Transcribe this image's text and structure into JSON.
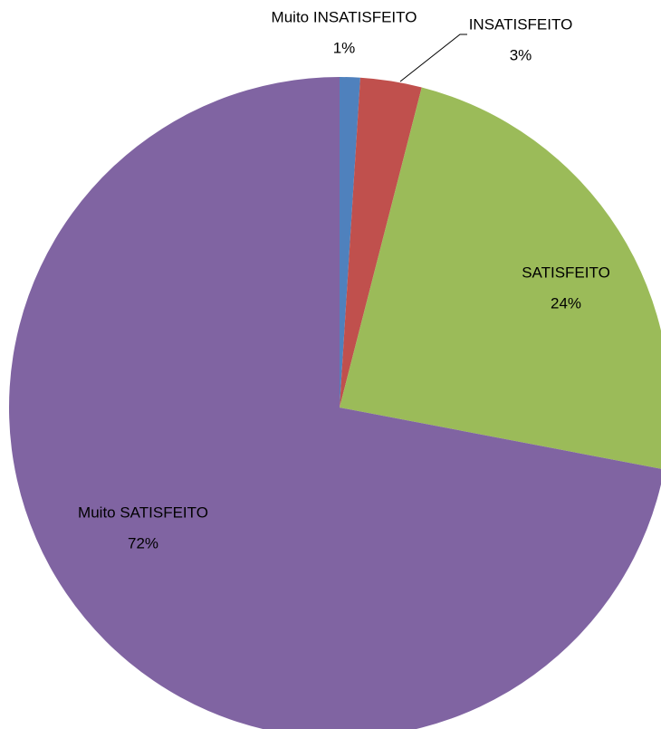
{
  "chart_data": {
    "type": "pie",
    "categories": [
      "Muito INSATISFEITO",
      "INSATISFEITO",
      "SATISFEITO",
      "Muito SATISFEITO"
    ],
    "values": [
      1,
      3,
      24,
      72
    ],
    "value_labels": [
      "1%",
      "3%",
      "24%",
      "72%"
    ],
    "colors": [
      "#4f81bd",
      "#c0504d",
      "#9bbb59",
      "#8064a2"
    ]
  }
}
